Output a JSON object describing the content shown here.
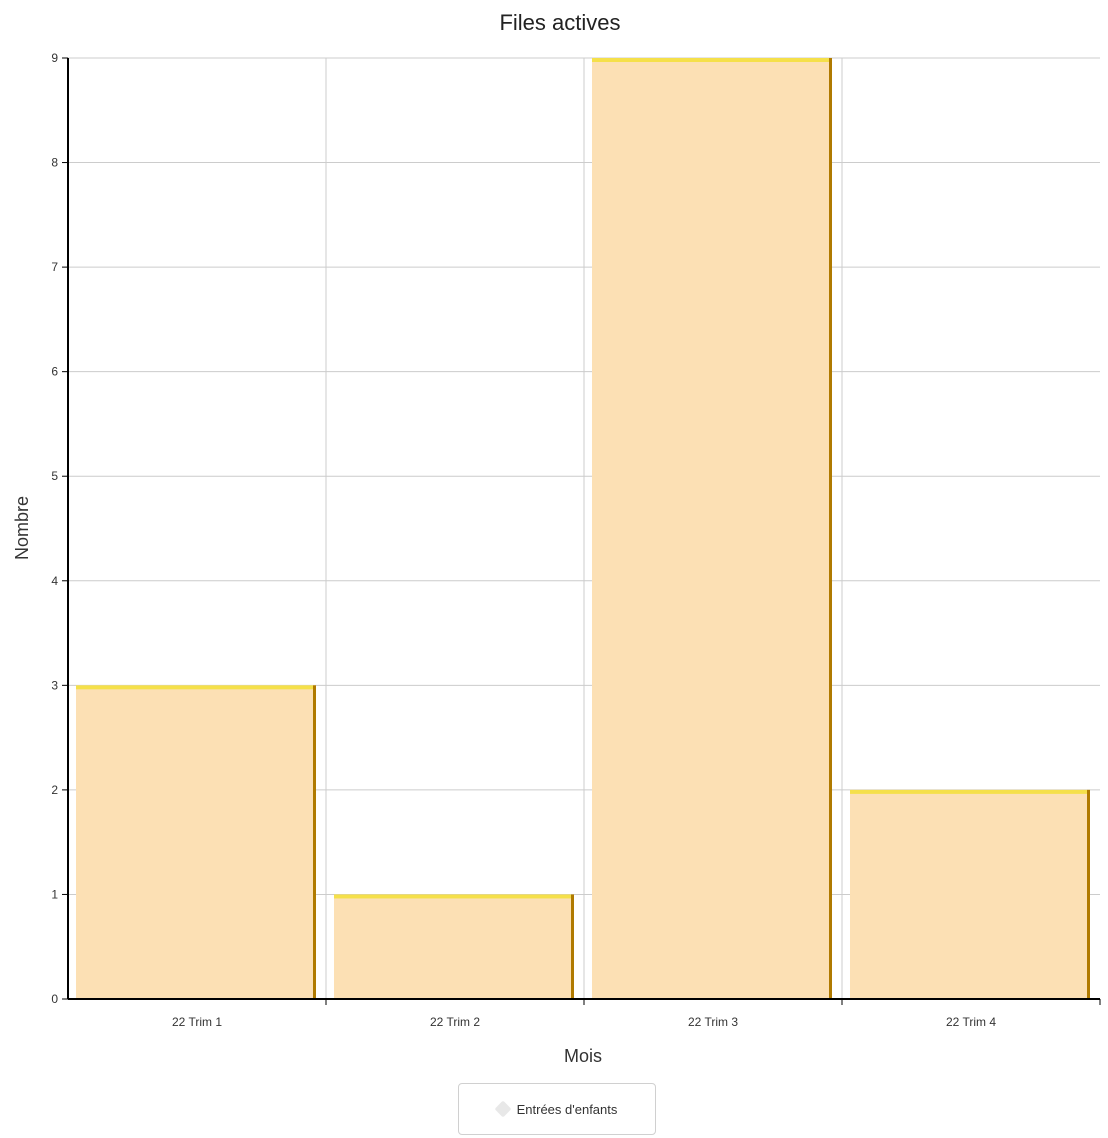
{
  "chart_data": {
    "type": "bar",
    "title": "Files actives",
    "xlabel": "Mois",
    "ylabel": "Nombre",
    "categories": [
      "22 Trim 1",
      "22 Trim 2",
      "22 Trim 3",
      "22 Trim 4"
    ],
    "series": [
      {
        "name": "Entrées d'enfants",
        "values": [
          3,
          1,
          9,
          2
        ]
      }
    ],
    "ylim": [
      0,
      9
    ],
    "yticks": [
      0,
      1,
      2,
      3,
      4,
      5,
      6,
      7,
      8,
      9
    ],
    "grid": true,
    "legend": "bottom-center",
    "colors": {
      "bar_fill": "#fce0b4",
      "bar_top": "#f5e04a",
      "bar_edge": "#b07a00",
      "grid": "#cccccc",
      "axis": "#000000"
    }
  }
}
